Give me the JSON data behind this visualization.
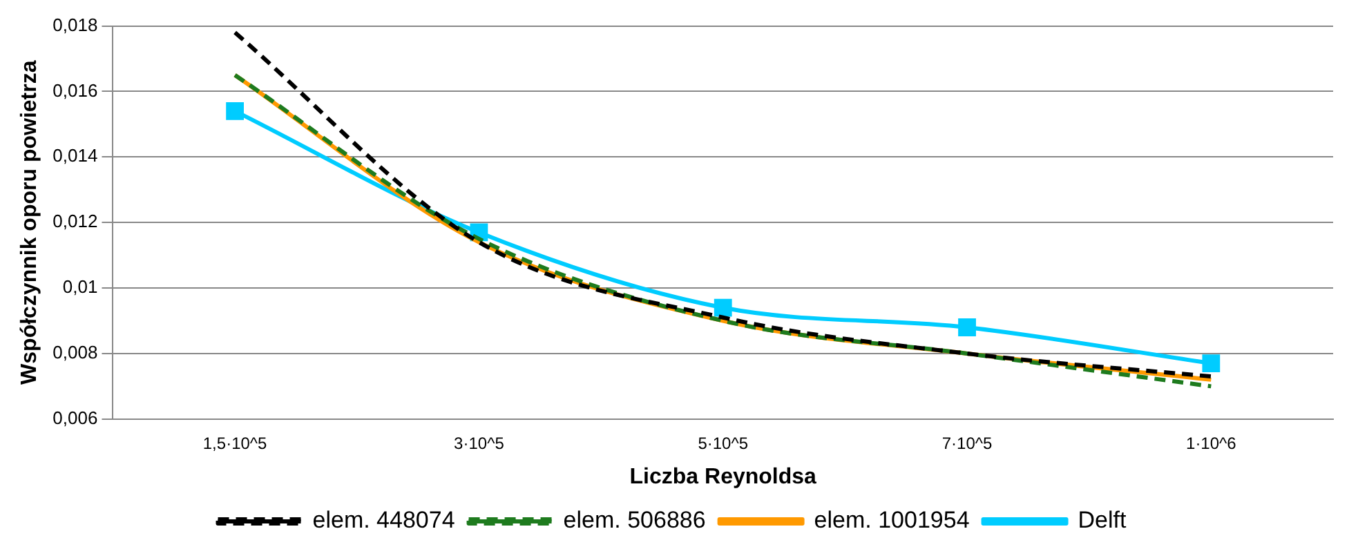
{
  "chart_data": {
    "type": "line",
    "xlabel": "Liczba Reynoldsa",
    "ylabel": "Współczynnik oporu powietrza",
    "categories": [
      "1,5·10^5",
      "3·10^5",
      "5·10^5",
      "7·10^5",
      "1·10^6"
    ],
    "ylim": [
      0.006,
      0.018
    ],
    "yticks": [
      {
        "value": 0.006,
        "label": "0,006"
      },
      {
        "value": 0.008,
        "label": "0,008"
      },
      {
        "value": 0.01,
        "label": "0,01"
      },
      {
        "value": 0.012,
        "label": "0,012"
      },
      {
        "value": 0.014,
        "label": "0,014"
      },
      {
        "value": 0.016,
        "label": "0,016"
      },
      {
        "value": 0.018,
        "label": "0,018"
      }
    ],
    "grid": "y",
    "legend": "bottom",
    "series": [
      {
        "name": "elem. 448074",
        "color": "#000000",
        "line_style": "dashed",
        "marker": "none",
        "values": [
          0.0178,
          0.0114,
          0.0091,
          0.008,
          0.0073
        ]
      },
      {
        "name": "elem. 506886",
        "color": "#1e7b1e",
        "line_style": "dashed",
        "marker": "none",
        "values": [
          0.0165,
          0.0115,
          0.009,
          0.008,
          0.007
        ]
      },
      {
        "name": "elem. 1001954",
        "color": "#ff9900",
        "line_style": "solid",
        "marker": "none",
        "values": [
          0.0165,
          0.0114,
          0.009,
          0.008,
          0.0072
        ]
      },
      {
        "name": "Delft",
        "color": "#00ccff",
        "line_style": "solid",
        "marker": "square",
        "values": [
          0.0154,
          0.0117,
          0.0094,
          0.0088,
          0.0077
        ]
      }
    ]
  }
}
